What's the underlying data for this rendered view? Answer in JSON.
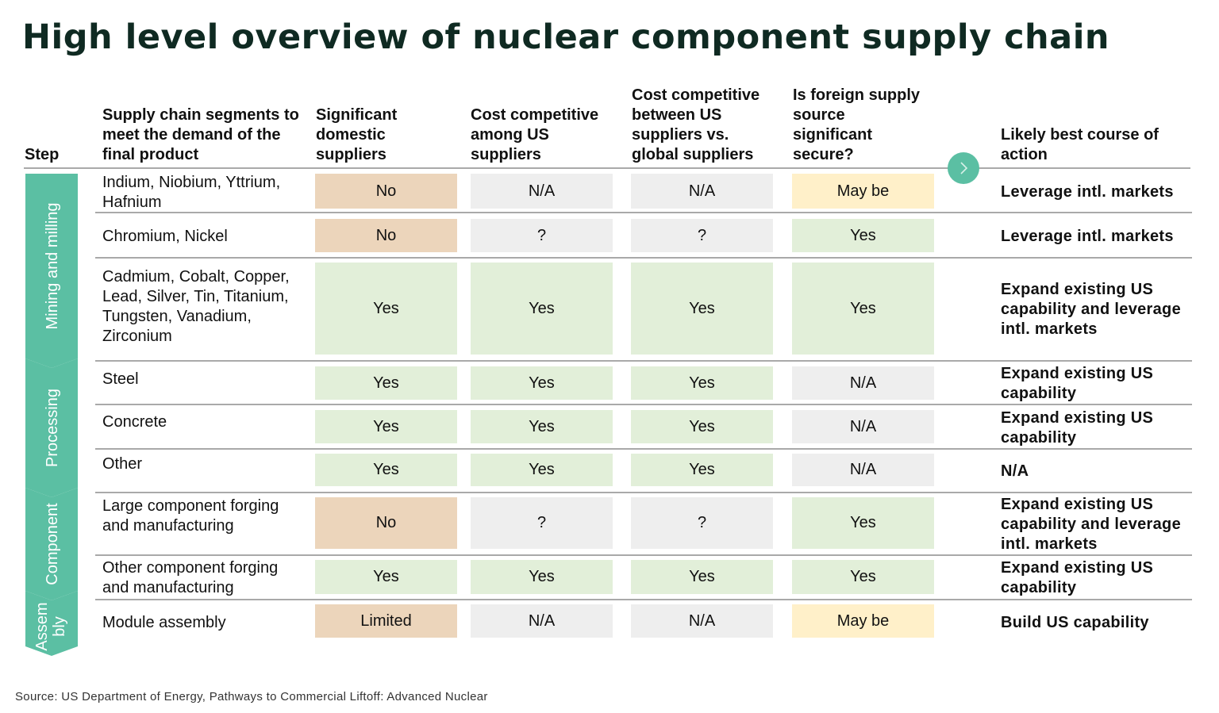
{
  "title": "High level overview of nuclear component supply chain",
  "headers": {
    "step": "Step",
    "segments": "Supply chain segments to meet the demand of the final product",
    "domestic": "Significant domestic suppliers",
    "cost_us": "Cost competitive among US suppliers",
    "cost_global": "Cost competitive between US suppliers vs. global suppliers",
    "foreign": "Is foreign supply source significant secure?",
    "action": "Likely best course of action"
  },
  "steps": [
    {
      "label": "Mining and milling"
    },
    {
      "label": "Processing"
    },
    {
      "label": "Component"
    },
    {
      "label": "Assem bly"
    }
  ],
  "rows": [
    {
      "segment": "Indium, Niobium, Yttrium, Hafnium",
      "values": [
        "No",
        "N/A",
        "N/A",
        "May be"
      ],
      "action": "Leverage intl. markets"
    },
    {
      "segment": "Chromium, Nickel",
      "values": [
        "No",
        "?",
        "?",
        "Yes"
      ],
      "action": "Leverage intl. markets"
    },
    {
      "segment": "Cadmium, Cobalt, Copper, Lead, Silver, Tin, Titanium, Tungsten, Vanadium, Zirconium",
      "values": [
        "Yes",
        "Yes",
        "Yes",
        "Yes"
      ],
      "action": "Expand existing US capability and leverage intl. markets"
    },
    {
      "segment": "Steel",
      "values": [
        "Yes",
        "Yes",
        "Yes",
        "N/A"
      ],
      "action": "Expand existing US capability"
    },
    {
      "segment": "Concrete",
      "values": [
        "Yes",
        "Yes",
        "Yes",
        "N/A"
      ],
      "action": "Expand existing US capability"
    },
    {
      "segment": "Other",
      "values": [
        "Yes",
        "Yes",
        "Yes",
        "N/A"
      ],
      "action": "N/A"
    },
    {
      "segment": "Large component forging and manufacturing",
      "values": [
        "No",
        "?",
        "?",
        "Yes"
      ],
      "action": "Expand existing US capability and leverage intl. markets"
    },
    {
      "segment": "Other component forging and manufacturing",
      "values": [
        "Yes",
        "Yes",
        "Yes",
        "Yes"
      ],
      "action": "Expand existing US capability"
    },
    {
      "segment": "Module assembly",
      "values": [
        "Limited",
        "N/A",
        "N/A",
        "May be"
      ],
      "action": "Build US capability"
    }
  ],
  "colors": {
    "teal": "#5bbfa3",
    "no": "#ecd5bb",
    "limited": "#ecd5bb",
    "yes": "#e2efd9",
    "na": "#eeeeee",
    "maybe": "#fff0c9"
  },
  "source": "Source: US Department of Energy, Pathways to Commercial Liftoff: Advanced Nuclear"
}
